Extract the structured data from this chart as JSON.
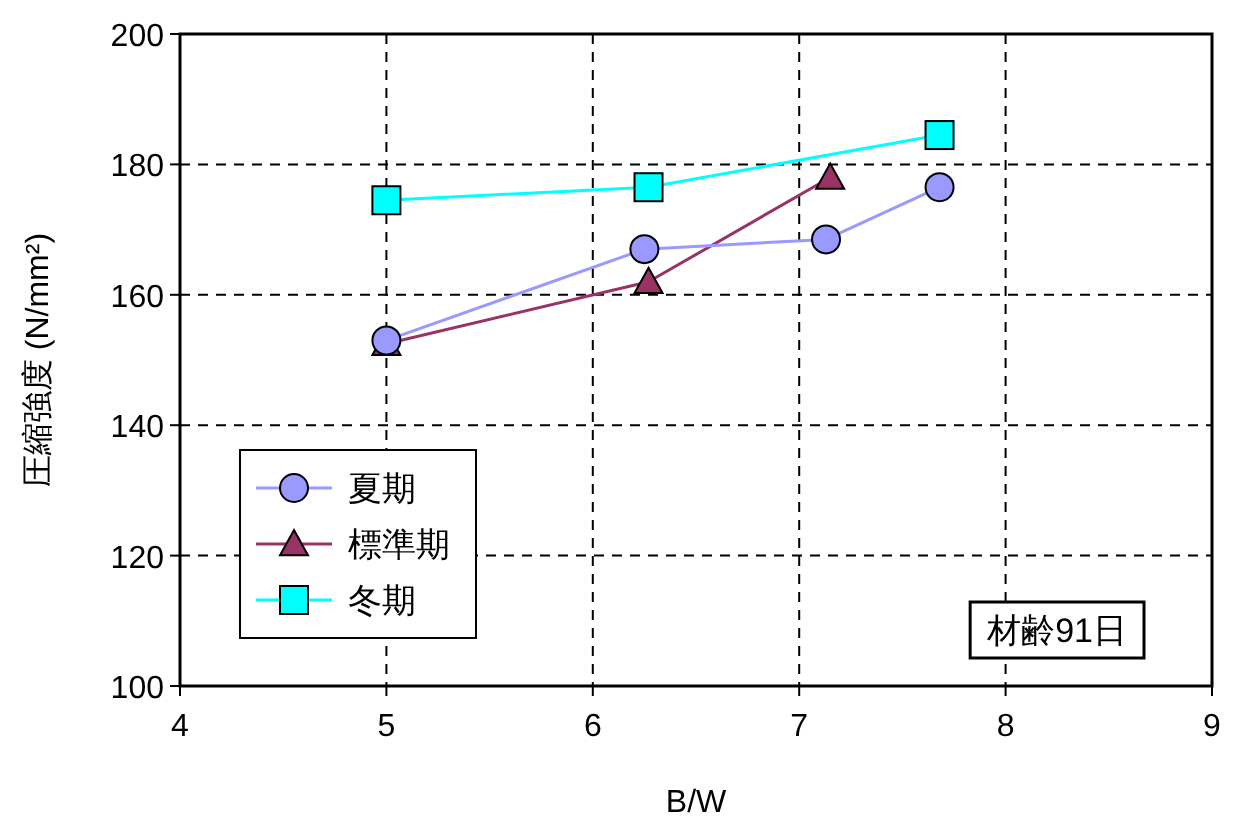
{
  "chart_data": {
    "type": "line",
    "xlabel": "B/W",
    "ylabel": "圧縮強度 (N/mm²)",
    "xlim": [
      4,
      9
    ],
    "ylim": [
      100,
      200
    ],
    "xticks": [
      4,
      5,
      6,
      7,
      8,
      9
    ],
    "yticks": [
      100,
      120,
      140,
      160,
      180,
      200
    ],
    "grid": true,
    "legend": "bottom left",
    "line_style": "solid",
    "series": [
      {
        "name": "夏期",
        "color": "#9999ff",
        "marker": "circle",
        "x": [
          5.0,
          6.25,
          7.13,
          7.68
        ],
        "values": [
          153,
          167,
          168.5,
          176.5
        ]
      },
      {
        "name": "標準期",
        "color": "#993366",
        "marker": "triangle",
        "x": [
          5.0,
          6.27,
          7.15
        ],
        "values": [
          152.5,
          162,
          178
        ]
      },
      {
        "name": "冬期",
        "color": "#00ffff",
        "marker": "square",
        "x": [
          5.0,
          6.27,
          7.68
        ],
        "values": [
          174.5,
          176.5,
          184.5
        ]
      }
    ],
    "annotations": [
      "材齢91日"
    ]
  }
}
